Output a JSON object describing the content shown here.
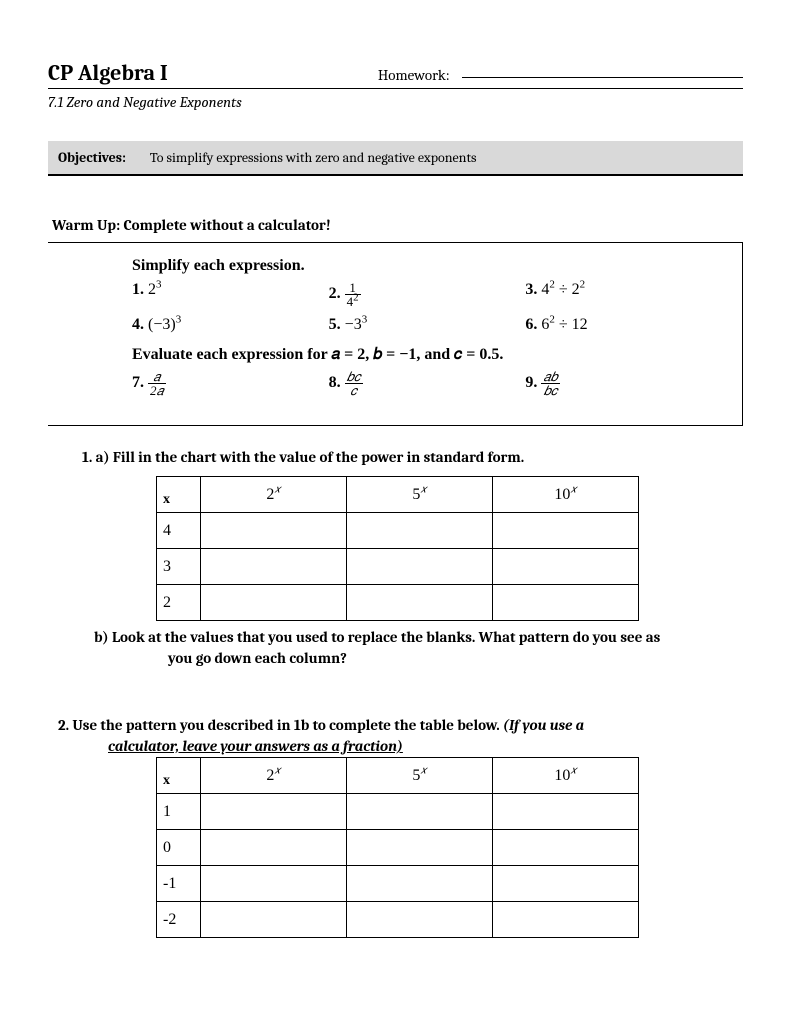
{
  "header": {
    "title": "CP Algebra I",
    "homework_label": "Homework:",
    "subtitle": "7.1 Zero and Negative Exponents"
  },
  "objectives": {
    "label": "Objectives:",
    "text": "To simplify expressions with zero and negative exponents"
  },
  "warmup": {
    "title": "Warm Up: Complete without a calculator!",
    "simplify_heading": "Simplify each expression.",
    "p1_num": "1.",
    "p1_base": "2",
    "p1_exp": "3",
    "p2_num": "2.",
    "p2_frac_n": "1",
    "p2_frac_d_base": "4",
    "p2_frac_d_exp": "2",
    "p3_num": "3.",
    "p3_a_base": "4",
    "p3_a_exp": "2",
    "p3_op": " ÷ ",
    "p3_b_base": "2",
    "p3_b_exp": "2",
    "p4_num": "4.",
    "p4_expr": "(−3)",
    "p4_exp": "3",
    "p5_num": "5.",
    "p5_neg": "−",
    "p5_base": "3",
    "p5_exp": "3",
    "p6_num": "6.",
    "p6_a_base": "6",
    "p6_a_exp": "2",
    "p6_rest": " ÷ 12",
    "eval_heading": "Evaluate each expression for 𝑎 = 2, 𝑏 = −1, and 𝑐 = 0.5.",
    "p7_num": "7.",
    "p7_n": "𝑎",
    "p7_d": "2𝑎",
    "p8_num": "8.",
    "p8_n": "𝑏𝑐",
    "p8_d": "𝑐",
    "p9_num": "9.",
    "p9_n": "𝑎𝑏",
    "p9_d": "𝑏𝑐"
  },
  "q1a": "1. a) Fill in the chart with the value of the power in standard form.",
  "table1": {
    "x_label": "x",
    "col1_base": "2",
    "col1_exp": "𝑥",
    "col2_base": "5",
    "col2_exp": "𝑥",
    "col3_base": "10",
    "col3_exp": "𝑥",
    "rows": [
      "4",
      "3",
      "2"
    ]
  },
  "q1b_a": "b) Look at the values that you used to replace the blanks.  What pattern do you see as",
  "q1b_b": "you go down each column?",
  "q2_a": "2.  Use the pattern you described in 1b to complete the table below.  ",
  "q2_ital": "(If you use a",
  "q2_b_ital": "calculator, leave your answers as a fraction)",
  "table2": {
    "x_label": "x",
    "col1_base": "2",
    "col1_exp": "𝑥",
    "col2_base": "5",
    "col2_exp": "𝑥",
    "col3_base": "10",
    "col3_exp": "𝑥",
    "rows": [
      "1",
      "0",
      "-1",
      "-2"
    ]
  }
}
